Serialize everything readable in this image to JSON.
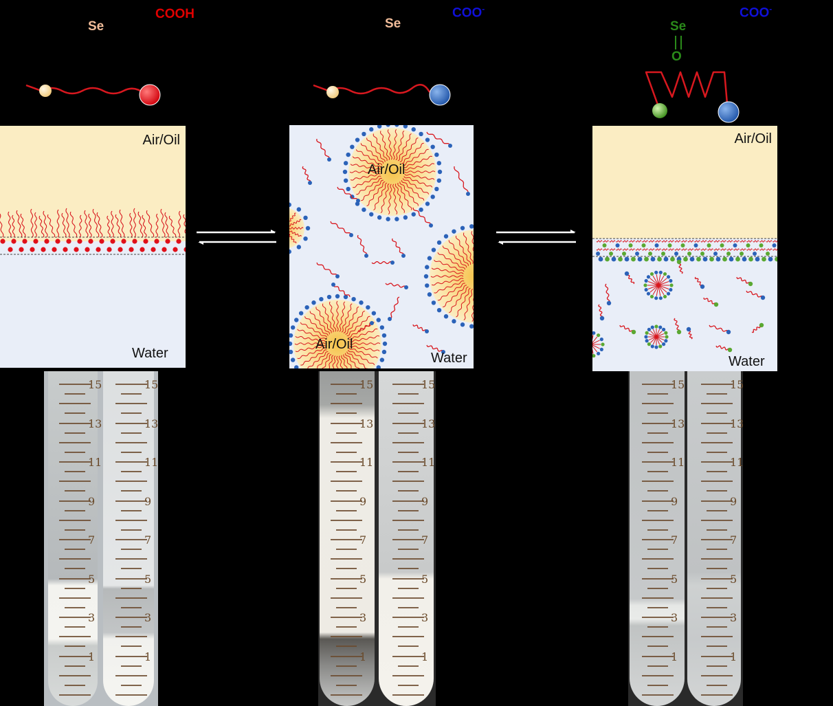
{
  "molecule_labels": {
    "m1": {
      "head_group": "Se",
      "tail_group": "COOH"
    },
    "m2": {
      "head_group": "Se",
      "tail_group": "COO",
      "charge": "-"
    },
    "m3": {
      "oxide_top": "Se",
      "oxide_bottom": "O",
      "tail_group": "COO",
      "charge": "-"
    }
  },
  "panels": {
    "p1": {
      "top_phase": "Air/Oil",
      "bottom_phase": "Water"
    },
    "p2": {
      "droplet_a": "Air/Oil",
      "droplet_b": "Air/Oil",
      "bottom_phase": "Water"
    },
    "p3": {
      "top_phase": "Air/Oil",
      "bottom_phase": "Water"
    }
  },
  "tube_scale": [
    "15",
    "13",
    "11",
    "9",
    "7",
    "5",
    "3",
    "1"
  ],
  "colors": {
    "oil": "#fbedc3",
    "water": "#e9eef8",
    "protonated": "#e0101a",
    "deprotonated": "#2b62b8",
    "oxidized": "#5aa832",
    "tail": "#d8181f",
    "label_red": "#e00000",
    "label_blue": "#1010d8",
    "label_green": "#2a8a1a",
    "label_se": "#f2bd9a"
  },
  "icons": [
    "equilibrium-arrow-icon",
    "equilibrium-arrow-icon"
  ]
}
